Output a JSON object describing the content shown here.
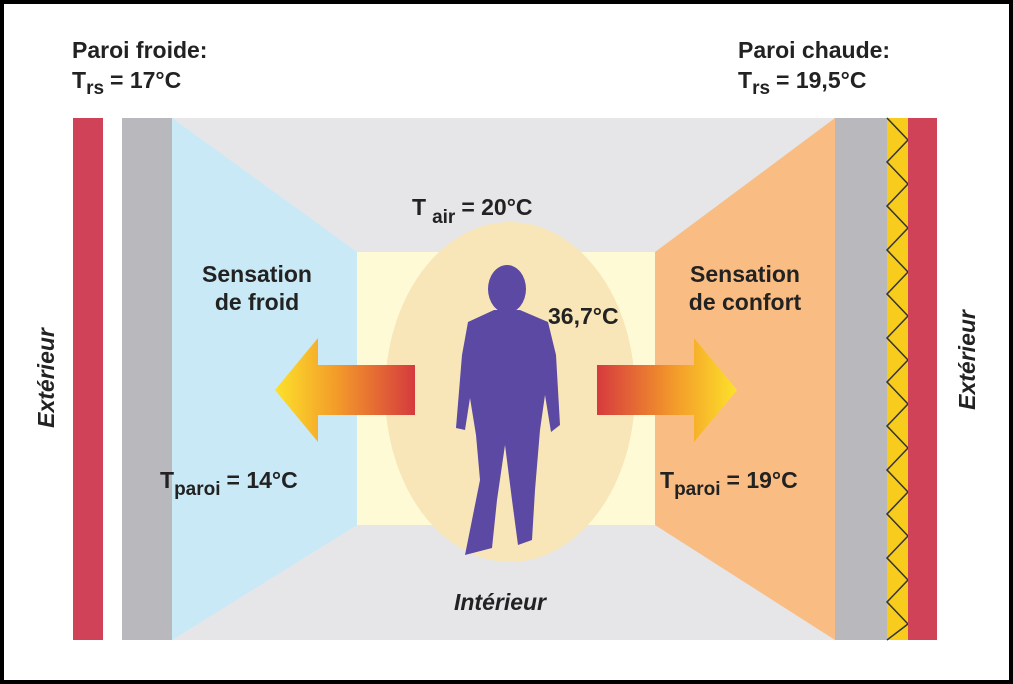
{
  "header": {
    "left": {
      "title": "Paroi froide:",
      "symbol": "T",
      "subscript": "rs",
      "value": "= 17°C"
    },
    "right": {
      "title": "Paroi chaude:",
      "symbol": "T",
      "subscript": "rs",
      "value": "= 19,5°C"
    }
  },
  "air": {
    "symbol": "T",
    "subscript": "air",
    "value": "= 20°C"
  },
  "left_zone": {
    "sensation": [
      "Sensation",
      "de froid"
    ],
    "wall": {
      "symbol": "T",
      "subscript": "paroi",
      "value": "= 14°C"
    }
  },
  "right_zone": {
    "sensation": [
      "Sensation",
      "de confort"
    ],
    "wall": {
      "symbol": "T",
      "subscript": "paroi",
      "value": "= 19°C"
    }
  },
  "body_temperature": "36,7°C",
  "interior": "Intérieur",
  "exterior": [
    "Extérieur",
    "Extérieur"
  ]
}
